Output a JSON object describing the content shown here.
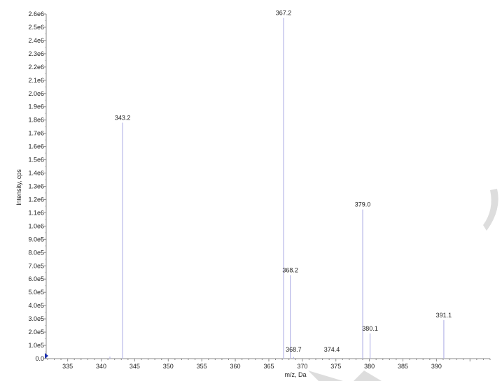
{
  "chart_data": {
    "type": "bar",
    "subtype": "mass-spectrum-sticks",
    "xlabel": "m/z, Da",
    "ylabel": "Intensity, cps",
    "xlim": [
      331.8,
      398.0
    ],
    "ylim": [
      0,
      2600000
    ],
    "x_ticks": [
      335,
      340,
      345,
      350,
      355,
      360,
      365,
      370,
      375,
      380,
      385,
      390
    ],
    "x_tick_labels": [
      "335",
      "340",
      "345",
      "350",
      "355",
      "360",
      "365",
      "370",
      "375",
      "380",
      "385",
      "390"
    ],
    "y_ticks": [
      0,
      100000,
      200000,
      300000,
      400000,
      500000,
      600000,
      700000,
      800000,
      900000,
      1000000,
      1100000,
      1200000,
      1300000,
      1400000,
      1500000,
      1600000,
      1700000,
      1800000,
      1900000,
      2000000,
      2100000,
      2200000,
      2300000,
      2400000,
      2500000,
      2600000
    ],
    "y_tick_labels": [
      "0.0",
      "1.0e5",
      "2.0e5",
      "3.0e5",
      "4.0e5",
      "5.0e5",
      "6.0e5",
      "7.0e5",
      "8.0e5",
      "9.0e5",
      "1.0e6",
      "1.1e6",
      "1.2e6",
      "1.3e6",
      "1.4e6",
      "1.5e6",
      "1.6e6",
      "1.7e6",
      "1.8e6",
      "1.9e6",
      "2.0e6",
      "2.1e6",
      "2.2e6",
      "2.3e6",
      "2.4e6",
      "2.5e6",
      "2.6e6"
    ],
    "grid": false,
    "peaks": [
      {
        "mz": 341.3,
        "intensity": 15000,
        "label": ""
      },
      {
        "mz": 343.2,
        "intensity": 1780000,
        "label": "343.2"
      },
      {
        "mz": 367.2,
        "intensity": 2570000,
        "label": "367.2"
      },
      {
        "mz": 368.2,
        "intensity": 630000,
        "label": "368.2"
      },
      {
        "mz": 368.7,
        "intensity": 12000,
        "label": "368.7"
      },
      {
        "mz": 374.4,
        "intensity": 6000,
        "label": "374.4"
      },
      {
        "mz": 379.0,
        "intensity": 1125000,
        "label": "379.0"
      },
      {
        "mz": 380.1,
        "intensity": 190000,
        "label": "380.1"
      },
      {
        "mz": 391.1,
        "intensity": 290000,
        "label": "391.1"
      }
    ],
    "colors": {
      "peak": "#b8b8e8",
      "axis": "#888888",
      "marker": "#1a2fb0"
    }
  }
}
